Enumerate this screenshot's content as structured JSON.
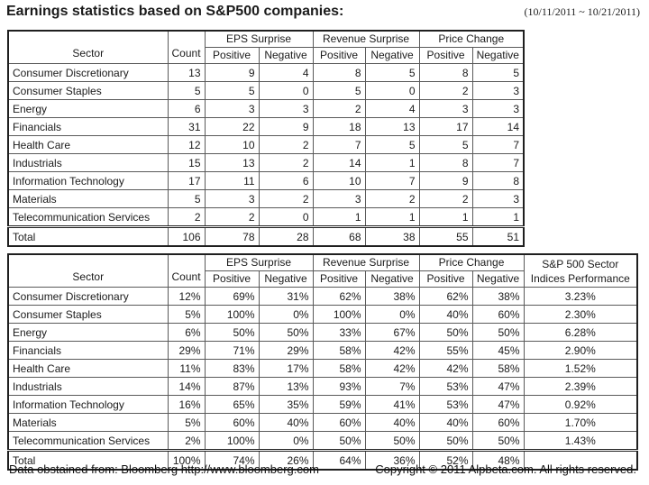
{
  "header": {
    "title": "Earnings statistics based on S&P500 companies:",
    "date_range": "(10/11/2011 ~ 10/21/2011)"
  },
  "tables": [
    {
      "name": "counts",
      "headers": {
        "sector": "Sector",
        "count": "Count",
        "groups": [
          "EPS Surprise",
          "Revenue Surprise",
          "Price Change"
        ],
        "sub": [
          "Positive",
          "Negative"
        ]
      },
      "rows": [
        [
          "Consumer Discretionary",
          "13",
          "9",
          "4",
          "8",
          "5",
          "8",
          "5"
        ],
        [
          "Consumer Staples",
          "5",
          "5",
          "0",
          "5",
          "0",
          "2",
          "3"
        ],
        [
          "Energy",
          "6",
          "3",
          "3",
          "2",
          "4",
          "3",
          "3"
        ],
        [
          "Financials",
          "31",
          "22",
          "9",
          "18",
          "13",
          "17",
          "14"
        ],
        [
          "Health Care",
          "12",
          "10",
          "2",
          "7",
          "5",
          "5",
          "7"
        ],
        [
          "Industrials",
          "15",
          "13",
          "2",
          "14",
          "1",
          "8",
          "7"
        ],
        [
          "Information Technology",
          "17",
          "11",
          "6",
          "10",
          "7",
          "9",
          "8"
        ],
        [
          "Materials",
          "5",
          "3",
          "2",
          "3",
          "2",
          "2",
          "3"
        ],
        [
          "Telecommunication Services",
          "2",
          "2",
          "0",
          "1",
          "1",
          "1",
          "1"
        ]
      ],
      "total": [
        "Total",
        "106",
        "78",
        "28",
        "68",
        "38",
        "55",
        "51"
      ]
    },
    {
      "name": "percentages",
      "headers": {
        "sector": "Sector",
        "count": "Count",
        "groups": [
          "EPS Surprise",
          "Revenue Surprise",
          "Price Change"
        ],
        "sub": [
          "Positive",
          "Negative"
        ],
        "extra": [
          "S&P 500 Sector",
          "Indices Performance"
        ]
      },
      "rows": [
        [
          "Consumer Discretionary",
          "12%",
          "69%",
          "31%",
          "62%",
          "38%",
          "62%",
          "38%",
          "3.23%"
        ],
        [
          "Consumer Staples",
          "5%",
          "100%",
          "0%",
          "100%",
          "0%",
          "40%",
          "60%",
          "2.30%"
        ],
        [
          "Energy",
          "6%",
          "50%",
          "50%",
          "33%",
          "67%",
          "50%",
          "50%",
          "6.28%"
        ],
        [
          "Financials",
          "29%",
          "71%",
          "29%",
          "58%",
          "42%",
          "55%",
          "45%",
          "2.90%"
        ],
        [
          "Health Care",
          "11%",
          "83%",
          "17%",
          "58%",
          "42%",
          "42%",
          "58%",
          "1.52%"
        ],
        [
          "Industrials",
          "14%",
          "87%",
          "13%",
          "93%",
          "7%",
          "53%",
          "47%",
          "2.39%"
        ],
        [
          "Information Technology",
          "16%",
          "65%",
          "35%",
          "59%",
          "41%",
          "53%",
          "47%",
          "0.92%"
        ],
        [
          "Materials",
          "5%",
          "60%",
          "40%",
          "60%",
          "40%",
          "40%",
          "60%",
          "1.70%"
        ],
        [
          "Telecommunication Services",
          "2%",
          "100%",
          "0%",
          "50%",
          "50%",
          "50%",
          "50%",
          "1.43%"
        ]
      ],
      "total": [
        "Total",
        "100%",
        "74%",
        "26%",
        "64%",
        "36%",
        "52%",
        "48%",
        ""
      ]
    }
  ],
  "footer": {
    "source": "Data obstained from:  Bloomberg http://www.bloomberg.com",
    "copyright": "Copyright © 2011 Alpbeta.com. All rights reserved."
  }
}
